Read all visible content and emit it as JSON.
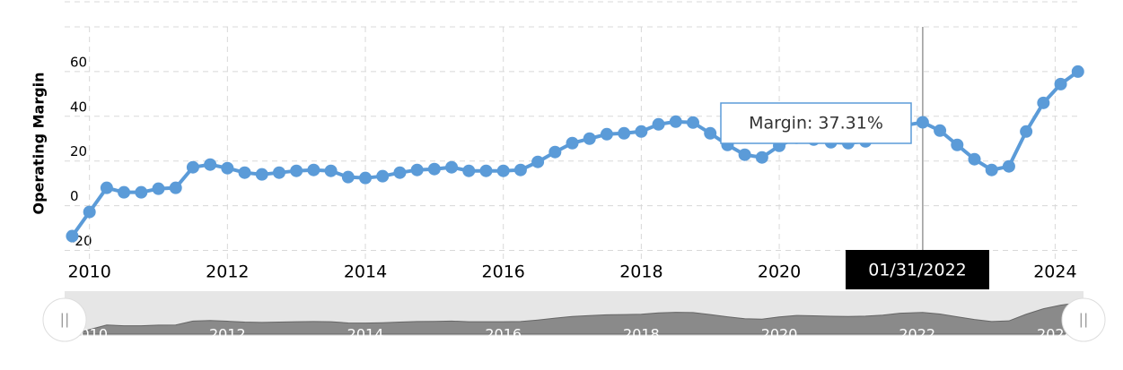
{
  "chart_data": {
    "type": "line",
    "y_axis_label": "Operating Margin",
    "x": [
      2009.75,
      2010.0,
      2010.25,
      2010.5,
      2010.75,
      2011.0,
      2011.25,
      2011.5,
      2011.75,
      2012.0,
      2012.25,
      2012.5,
      2012.75,
      2013.0,
      2013.25,
      2013.5,
      2013.75,
      2014.0,
      2014.25,
      2014.5,
      2014.75,
      2015.0,
      2015.25,
      2015.5,
      2015.75,
      2016.0,
      2016.25,
      2016.5,
      2016.75,
      2017.0,
      2017.25,
      2017.5,
      2017.75,
      2018.0,
      2018.25,
      2018.5,
      2018.75,
      2019.0,
      2019.25,
      2019.5,
      2019.75,
      2020.0,
      2020.25,
      2020.5,
      2020.75,
      2021.0,
      2021.25,
      2021.5,
      2021.75,
      2022.08,
      2022.33,
      2022.58,
      2022.83,
      2023.08,
      2023.33,
      2023.58,
      2023.83,
      2024.08,
      2024.33
    ],
    "series": [
      {
        "name": "Margin",
        "color": "#5b9bd8",
        "values": [
          -13.6,
          -2.8,
          8,
          6,
          6,
          7.6,
          8,
          17.2,
          18.4,
          16.8,
          14.8,
          14,
          14.8,
          15.6,
          16,
          15.6,
          12.8,
          12.4,
          13.2,
          14.8,
          16,
          16.4,
          17.2,
          15.6,
          15.6,
          15.6,
          16,
          19.6,
          24,
          28,
          30,
          32,
          32.4,
          33.2,
          36.4,
          37.6,
          37.2,
          32.4,
          27.2,
          22.8,
          21.6,
          26.8,
          30.4,
          29.6,
          28.4,
          28,
          28.8,
          31,
          35.6,
          37.31,
          33.6,
          27.2,
          20.8,
          16,
          17.6,
          33.2,
          46,
          54.4,
          60
        ]
      }
    ],
    "xlim": [
      2009.64,
      2024.32
    ],
    "xticks": [
      2010,
      2012,
      2014,
      2016,
      2018,
      2020,
      2022,
      2024
    ],
    "ylim": [
      -25,
      80
    ],
    "yticks": [
      -20,
      0,
      20,
      40,
      60
    ],
    "grid": true,
    "tooltip": {
      "index": 49,
      "label": "Margin: 37.31%",
      "date": "01/31/2022"
    }
  }
}
